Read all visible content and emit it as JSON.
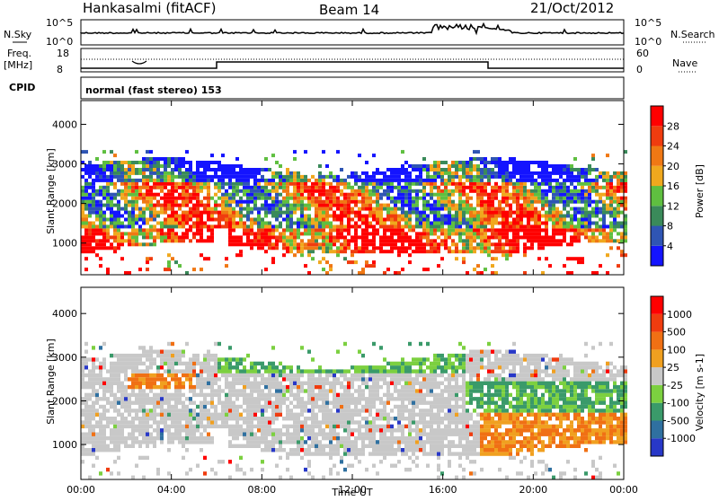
{
  "header": {
    "station": "Hankasalmi (fitACF)",
    "beam": "Beam 14",
    "date": "21/Oct/2012"
  },
  "status_panels": {
    "nsky_label": "N.Sky",
    "nsky_top": "10^5",
    "nsky_bottom": "10^0",
    "nsearch_label": "N.Search",
    "nsearch_top": "10^5",
    "nsearch_bottom": "10^0",
    "freq_label1": "Freq.",
    "freq_label2": "[MHz]",
    "freq_top": "18",
    "freq_bottom": "8",
    "nave_label": "Nave",
    "nave_top": "60",
    "nave_bottom": "0",
    "cpid_label": "CPID",
    "cpid_text": "normal (fast stereo) 153",
    "freq_step_hours": [
      6.0,
      18.0
    ]
  },
  "chart_data": [
    {
      "type": "heatmap",
      "title": "",
      "ylabel": "Slant Range [km]",
      "xlabel": "",
      "x_ticks": [
        "00:00",
        "04:00",
        "08:00",
        "12:00",
        "16:00",
        "20:00",
        "00:00"
      ],
      "xlim_hours": [
        0,
        24
      ],
      "y_ticks": [
        1000,
        2000,
        3000,
        4000
      ],
      "ylim": [
        200,
        4600
      ],
      "colorbar": {
        "label": "Power [dB]",
        "ticks": [
          "4",
          "8",
          "12",
          "16",
          "20",
          "24",
          "28"
        ],
        "colors": [
          "#1414ff",
          "#2f55b4",
          "#3a8a5a",
          "#5fbf40",
          "#f0a81e",
          "#f07814",
          "#f03c0f",
          "#ff0000"
        ]
      }
    },
    {
      "type": "heatmap",
      "title": "",
      "ylabel": "Slant Range [km]",
      "xlabel": "Time UT",
      "x_ticks": [
        "00:00",
        "04:00",
        "08:00",
        "12:00",
        "16:00",
        "20:00",
        "00:00"
      ],
      "xlim_hours": [
        0,
        24
      ],
      "y_ticks": [
        1000,
        2000,
        3000,
        4000
      ],
      "ylim": [
        200,
        4600
      ],
      "colorbar": {
        "label": "Velocity [m s-1]",
        "ticks": [
          "1000",
          "500",
          "100",
          "25",
          "-25",
          "-100",
          "-500",
          "-1000"
        ],
        "colors": [
          "#2838c8",
          "#2f70a0",
          "#3a9a6a",
          "#7cd040",
          "#c8c8c8",
          "#f0a020",
          "#f07014",
          "#f03c0f",
          "#ff0000"
        ]
      }
    }
  ]
}
